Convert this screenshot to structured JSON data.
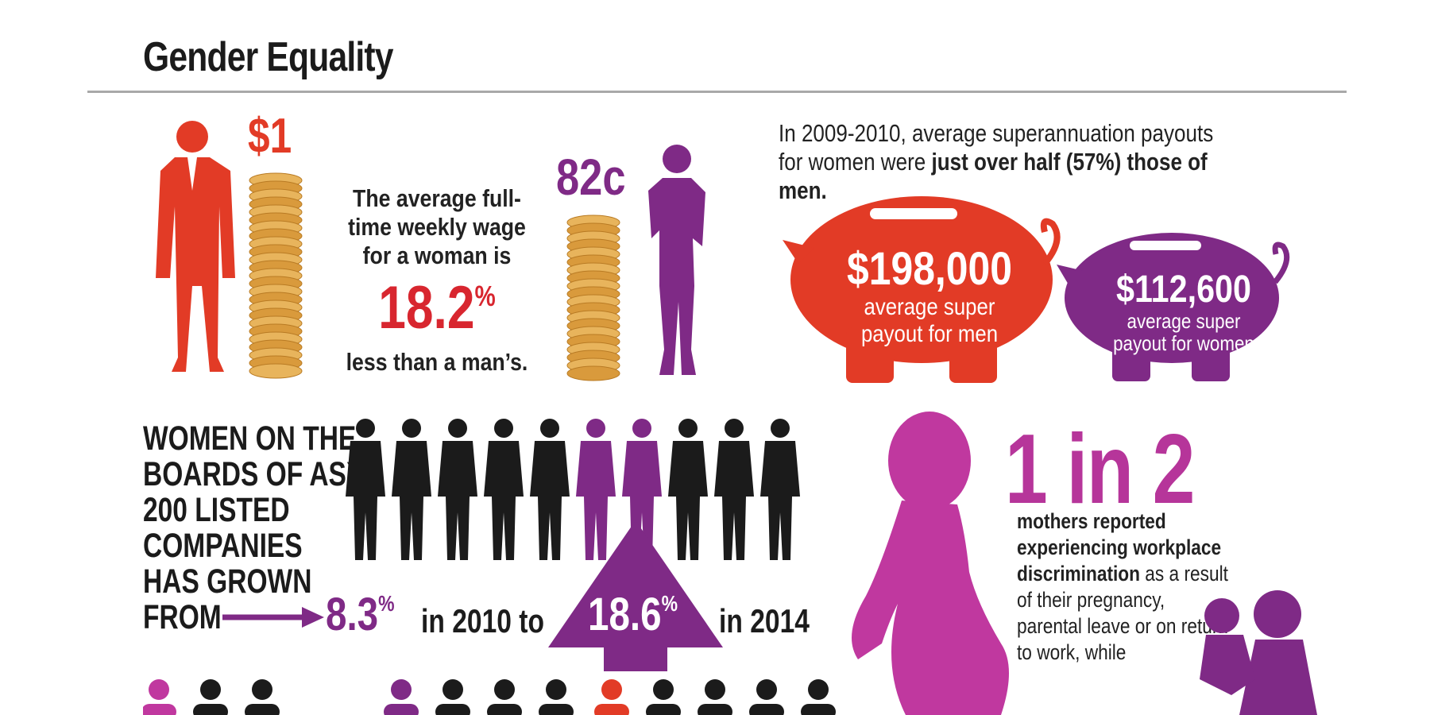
{
  "title": "Gender Equality",
  "colors": {
    "red": "#e23b26",
    "purple": "#7f2a86",
    "magenta": "#c0389f",
    "black": "#1b1b1b",
    "coin": "#e8b45c"
  },
  "wage": {
    "man_amount": "$1",
    "woman_amount": "82c",
    "text": "The average full-time weekly wage for a woman is",
    "pct_value": "18.2",
    "pct_symbol": "%",
    "tail": "less than a man’s."
  },
  "super": {
    "text_plain": "In 2009-2010, average superannuation payouts for women were ",
    "text_bold": "just over half (57%) those of men.",
    "men_amount": "$198,000",
    "men_label_1": "average super",
    "men_label_2": "payout for men",
    "women_amount": "$112,600",
    "women_label_1": "average super",
    "women_label_2": "payout for women"
  },
  "boards": {
    "line1": "WOMEN ON THE",
    "line2": "BOARDS OF ASX",
    "line3": "200 LISTED",
    "line4": "COMPANIES",
    "line5": "HAS GROWN",
    "line6": "FROM",
    "from_value": "8.3",
    "from_symbol": "%",
    "from_year": "in 2010 to",
    "to_value": "18.6",
    "to_symbol": "%",
    "to_year": "in 2014"
  },
  "mothers": {
    "ratio": "1 in 2",
    "bold": "mothers reported experiencing workplace discrimination",
    "rest": " as a result of their pregnancy, parental leave or on return to work, while"
  }
}
